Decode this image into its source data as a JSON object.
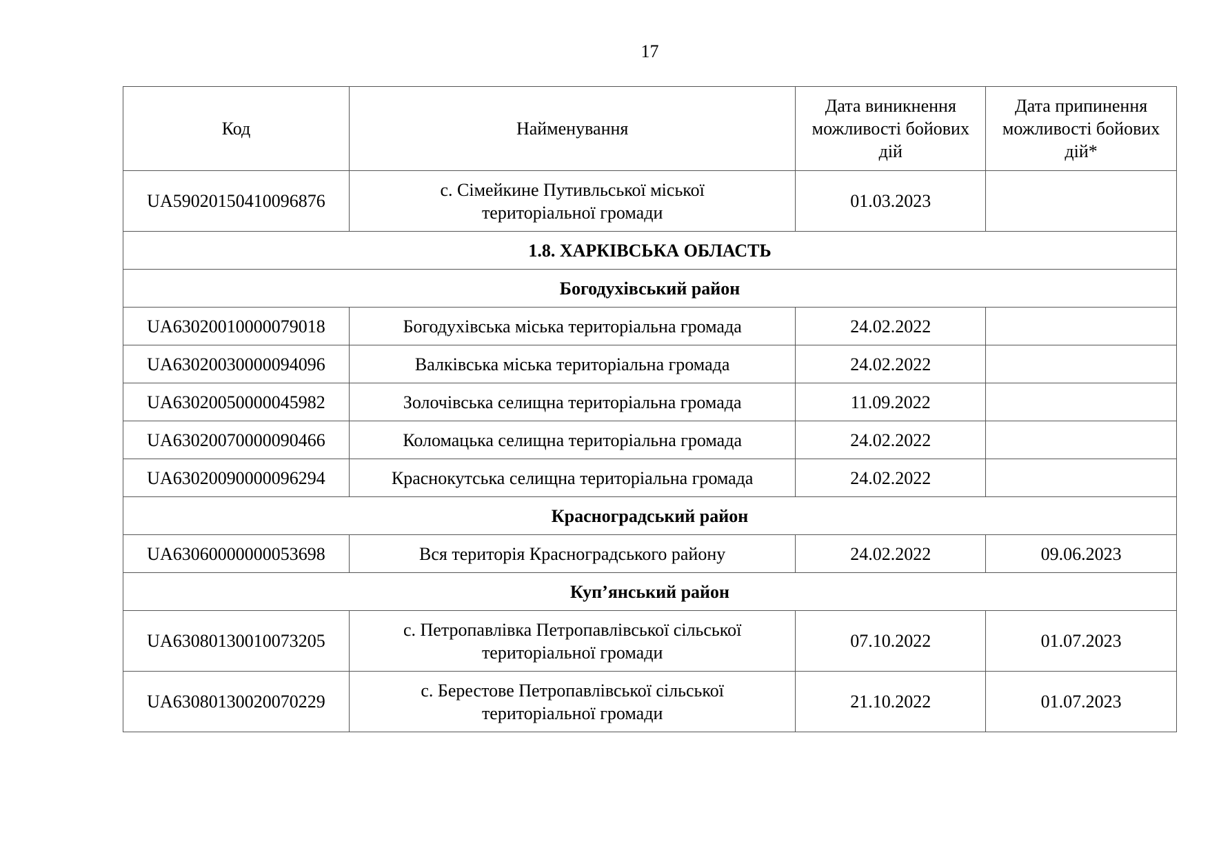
{
  "page_number": "17",
  "headers": [
    "Код",
    "Найменування",
    "Дата виникнення можливості бойових дій",
    "Дата припинення можливості бойових дій*"
  ],
  "rows": [
    {
      "type": "data",
      "code": "UA59020150410096876",
      "name": "с. Сімейкине Путивльської міської територіальної громади",
      "start": "01.03.2023",
      "end": ""
    },
    {
      "type": "section",
      "title": "1.8. ХАРКІВСЬКА ОБЛАСТЬ"
    },
    {
      "type": "section",
      "title": "Богодухівський район"
    },
    {
      "type": "data",
      "code": "UA63020010000079018",
      "name": "Богодухівська міська територіальна громада",
      "start": "24.02.2022",
      "end": ""
    },
    {
      "type": "data",
      "code": "UA63020030000094096",
      "name": "Валківська міська територіальна громада",
      "start": "24.02.2022",
      "end": ""
    },
    {
      "type": "data",
      "code": "UA63020050000045982",
      "name": "Золочівська селищна територіальна громада",
      "start": "11.09.2022",
      "end": ""
    },
    {
      "type": "data",
      "code": "UA63020070000090466",
      "name": "Коломацька селищна територіальна громада",
      "start": "24.02.2022",
      "end": ""
    },
    {
      "type": "data",
      "code": "UA63020090000096294",
      "name": "Краснокутська селищна територіальна громада",
      "start": "24.02.2022",
      "end": ""
    },
    {
      "type": "section",
      "title": "Красноградський район"
    },
    {
      "type": "data",
      "code": "UA63060000000053698",
      "name": "Вся територія Красноградського району",
      "start": "24.02.2022",
      "end": "09.06.2023"
    },
    {
      "type": "section",
      "title": "Куп’янський район"
    },
    {
      "type": "data",
      "code": "UA63080130010073205",
      "name": "с. Петропавлівка Петропавлівської сільської територіальної громади",
      "start": "07.10.2022",
      "end": "01.07.2023"
    },
    {
      "type": "data",
      "code": "UA63080130020070229",
      "name": "с. Берестове Петропавлівської сільської територіальної громади",
      "start": "21.10.2022",
      "end": "01.07.2023"
    }
  ]
}
